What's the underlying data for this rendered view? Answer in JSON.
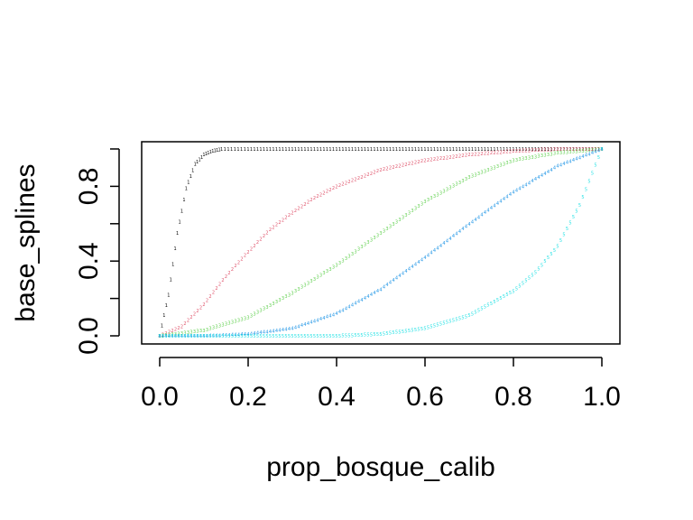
{
  "chart_data": {
    "type": "scatter",
    "title": "",
    "xlabel": "prop_bosque_calib",
    "ylabel": "base_splines",
    "xlim": [
      0.0,
      1.0
    ],
    "ylim": [
      0.0,
      1.0
    ],
    "x_ticks": [
      "0.0",
      "0.2",
      "0.4",
      "0.6",
      "0.8",
      "1.0"
    ],
    "y_ticks": [
      "0.0",
      "0.4",
      "0.8"
    ],
    "y_minor_ticks": [
      0.2,
      0.6,
      1.0
    ],
    "grid": false,
    "legend": "none",
    "point_symbols": [
      "1",
      "2",
      "3",
      "4",
      "5"
    ],
    "series": [
      {
        "symbol": "1",
        "color": "#000000",
        "points": [
          [
            0.0,
            0.0
          ],
          [
            0.02,
            0.22
          ],
          [
            0.04,
            0.55
          ],
          [
            0.06,
            0.79
          ],
          [
            0.08,
            0.92
          ],
          [
            0.1,
            0.97
          ],
          [
            0.12,
            0.99
          ],
          [
            0.14,
            1.0
          ],
          [
            0.2,
            1.0
          ],
          [
            0.3,
            1.0
          ],
          [
            0.4,
            1.0
          ],
          [
            0.5,
            1.0
          ],
          [
            0.6,
            1.0
          ],
          [
            0.7,
            1.0
          ],
          [
            0.8,
            1.0
          ],
          [
            0.9,
            1.0
          ],
          [
            1.0,
            1.0
          ]
        ]
      },
      {
        "symbol": "2",
        "color": "#DF536B",
        "points": [
          [
            0.0,
            0.0
          ],
          [
            0.05,
            0.05
          ],
          [
            0.1,
            0.17
          ],
          [
            0.15,
            0.32
          ],
          [
            0.2,
            0.45
          ],
          [
            0.25,
            0.57
          ],
          [
            0.3,
            0.66
          ],
          [
            0.35,
            0.74
          ],
          [
            0.4,
            0.8
          ],
          [
            0.5,
            0.89
          ],
          [
            0.6,
            0.94
          ],
          [
            0.7,
            0.97
          ],
          [
            0.8,
            0.99
          ],
          [
            0.9,
            1.0
          ],
          [
            1.0,
            1.0
          ]
        ]
      },
      {
        "symbol": "3",
        "color": "#61D04F",
        "points": [
          [
            0.0,
            0.0
          ],
          [
            0.1,
            0.03
          ],
          [
            0.2,
            0.1
          ],
          [
            0.3,
            0.23
          ],
          [
            0.4,
            0.38
          ],
          [
            0.5,
            0.55
          ],
          [
            0.6,
            0.72
          ],
          [
            0.7,
            0.85
          ],
          [
            0.8,
            0.94
          ],
          [
            0.9,
            0.98
          ],
          [
            1.0,
            1.0
          ]
        ]
      },
      {
        "symbol": "4",
        "color": "#2297E6",
        "points": [
          [
            0.0,
            0.0
          ],
          [
            0.1,
            0.0
          ],
          [
            0.2,
            0.01
          ],
          [
            0.3,
            0.04
          ],
          [
            0.4,
            0.12
          ],
          [
            0.5,
            0.25
          ],
          [
            0.6,
            0.42
          ],
          [
            0.7,
            0.6
          ],
          [
            0.8,
            0.77
          ],
          [
            0.9,
            0.91
          ],
          [
            1.0,
            1.0
          ]
        ]
      },
      {
        "symbol": "5",
        "color": "#28E2E5",
        "points": [
          [
            0.0,
            0.0
          ],
          [
            0.2,
            0.0
          ],
          [
            0.4,
            0.0
          ],
          [
            0.5,
            0.01
          ],
          [
            0.6,
            0.04
          ],
          [
            0.7,
            0.11
          ],
          [
            0.8,
            0.24
          ],
          [
            0.85,
            0.34
          ],
          [
            0.9,
            0.48
          ],
          [
            0.95,
            0.7
          ],
          [
            1.0,
            1.0
          ]
        ]
      }
    ]
  }
}
